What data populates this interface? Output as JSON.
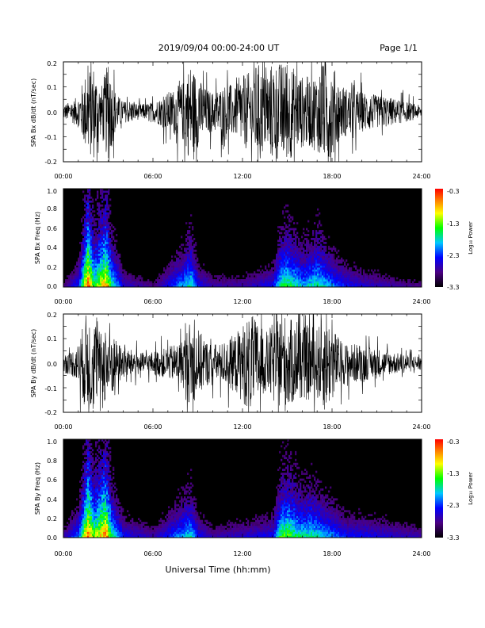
{
  "header": {
    "title": "2019/09/04  00:00-24:00 UT",
    "page": "Page 1/1"
  },
  "footer": {
    "xlabel": "Universal Time (hh:mm)"
  },
  "chart_data": [
    {
      "type": "line",
      "ylabel": "SPA Bx dB/dt (nT/sec)",
      "xlim": [
        0,
        24
      ],
      "ylim": [
        -0.2,
        0.2
      ],
      "xticks": [
        "00:00",
        "06:00",
        "12:00",
        "18:00",
        "24:00"
      ],
      "yticks": [
        "-0.2",
        "-0.1",
        "0.0",
        "0.1",
        "0.2"
      ],
      "series": [
        {
          "x": [
            0,
            0.5,
            1,
            1.5,
            2,
            2.5,
            3,
            3.5,
            4,
            4.5,
            5,
            5.5,
            6,
            6.5,
            7,
            7.5,
            8,
            8.5,
            9,
            9.5,
            10,
            10.5,
            11,
            11.5,
            12,
            12.5,
            13,
            13.5,
            14,
            14.5,
            15,
            15.5,
            16,
            16.5,
            17,
            17.5,
            18,
            18.5,
            19,
            19.5,
            20,
            20.5,
            21,
            21.5,
            22,
            22.5,
            23,
            23.5,
            24
          ],
          "amplitude": [
            0.04,
            0.05,
            0.08,
            0.2,
            0.25,
            0.12,
            0.25,
            0.1,
            0.05,
            0.06,
            0.04,
            0.04,
            0.05,
            0.07,
            0.1,
            0.12,
            0.15,
            0.25,
            0.18,
            0.12,
            0.1,
            0.12,
            0.15,
            0.12,
            0.18,
            0.2,
            0.25,
            0.2,
            0.25,
            0.25,
            0.25,
            0.22,
            0.18,
            0.18,
            0.2,
            0.25,
            0.25,
            0.15,
            0.12,
            0.12,
            0.1,
            0.1,
            0.08,
            0.08,
            0.07,
            0.06,
            0.05,
            0.04,
            0.03
          ]
        }
      ]
    },
    {
      "type": "heatmap",
      "ylabel": "SPA Bx Freq (Hz)",
      "xlim": [
        0,
        24
      ],
      "ylim": [
        0,
        1.0
      ],
      "xticks": [
        "00:00",
        "06:00",
        "12:00",
        "18:00",
        "24:00"
      ],
      "yticks": [
        "0.0",
        "0.2",
        "0.4",
        "0.6",
        "0.8",
        "1.0"
      ],
      "colorbar": {
        "label": "Log₁₀ Power",
        "range": [
          -3.3,
          -0.3
        ],
        "ticks": [
          "-0.3",
          "-1.3",
          "-2.3",
          "-3.3"
        ]
      },
      "activity_hours": [
        0,
        1,
        1.6,
        2,
        2.8,
        3.2,
        4,
        6,
        8,
        8.5,
        9,
        10,
        12,
        14,
        14.5,
        15,
        16,
        16.5,
        17,
        18,
        19,
        20,
        22,
        24
      ],
      "activity_level": [
        0.15,
        0.35,
        0.95,
        0.6,
        0.85,
        0.55,
        0.25,
        0.15,
        0.45,
        0.55,
        0.3,
        0.2,
        0.2,
        0.3,
        0.55,
        0.6,
        0.45,
        0.5,
        0.55,
        0.4,
        0.3,
        0.25,
        0.2,
        0.15
      ]
    },
    {
      "type": "line",
      "ylabel": "SPA By dB/dt (nT/sec)",
      "xlim": [
        0,
        24
      ],
      "ylim": [
        -0.2,
        0.2
      ],
      "xticks": [
        "00:00",
        "06:00",
        "12:00",
        "18:00",
        "24:00"
      ],
      "yticks": [
        "-0.2",
        "-0.1",
        "0.0",
        "0.1",
        "0.2"
      ],
      "series": [
        {
          "x": [
            0,
            0.5,
            1,
            1.5,
            2,
            2.5,
            3,
            3.5,
            4,
            4.5,
            5,
            5.5,
            6,
            6.5,
            7,
            7.5,
            8,
            8.5,
            9,
            9.5,
            10,
            10.5,
            11,
            11.5,
            12,
            12.5,
            13,
            13.5,
            14,
            14.5,
            15,
            15.5,
            16,
            16.5,
            17,
            17.5,
            18,
            18.5,
            19,
            19.5,
            20,
            20.5,
            21,
            21.5,
            22,
            22.5,
            23,
            23.5,
            24
          ],
          "amplitude": [
            0.05,
            0.06,
            0.1,
            0.25,
            0.25,
            0.15,
            0.25,
            0.12,
            0.08,
            0.07,
            0.06,
            0.05,
            0.06,
            0.07,
            0.08,
            0.1,
            0.12,
            0.22,
            0.18,
            0.12,
            0.1,
            0.1,
            0.12,
            0.15,
            0.2,
            0.25,
            0.22,
            0.15,
            0.2,
            0.25,
            0.25,
            0.2,
            0.18,
            0.2,
            0.18,
            0.25,
            0.2,
            0.12,
            0.1,
            0.1,
            0.1,
            0.08,
            0.08,
            0.06,
            0.06,
            0.05,
            0.05,
            0.04,
            0.04
          ]
        }
      ]
    },
    {
      "type": "heatmap",
      "ylabel": "SPA By Freq (Hz)",
      "xlim": [
        0,
        24
      ],
      "ylim": [
        0,
        1.0
      ],
      "xticks": [
        "00:00",
        "06:00",
        "12:00",
        "18:00",
        "24:00"
      ],
      "yticks": [
        "0.0",
        "0.2",
        "0.4",
        "0.6",
        "0.8",
        "1.0"
      ],
      "colorbar": {
        "label": "Log₁₀ Power",
        "range": [
          -3.3,
          -0.3
        ],
        "ticks": [
          "-0.3",
          "-1.3",
          "-2.3",
          "-3.3"
        ]
      },
      "activity_hours": [
        0,
        1,
        1.6,
        2,
        2.8,
        3.2,
        4,
        6,
        8,
        8.5,
        9,
        10,
        12,
        14,
        14.5,
        15,
        16,
        16.5,
        17,
        18,
        19,
        20,
        22,
        24
      ],
      "activity_level": [
        0.2,
        0.4,
        0.95,
        0.65,
        0.9,
        0.55,
        0.3,
        0.2,
        0.45,
        0.5,
        0.3,
        0.2,
        0.25,
        0.3,
        0.6,
        0.65,
        0.5,
        0.55,
        0.5,
        0.4,
        0.3,
        0.3,
        0.25,
        0.2
      ]
    }
  ]
}
